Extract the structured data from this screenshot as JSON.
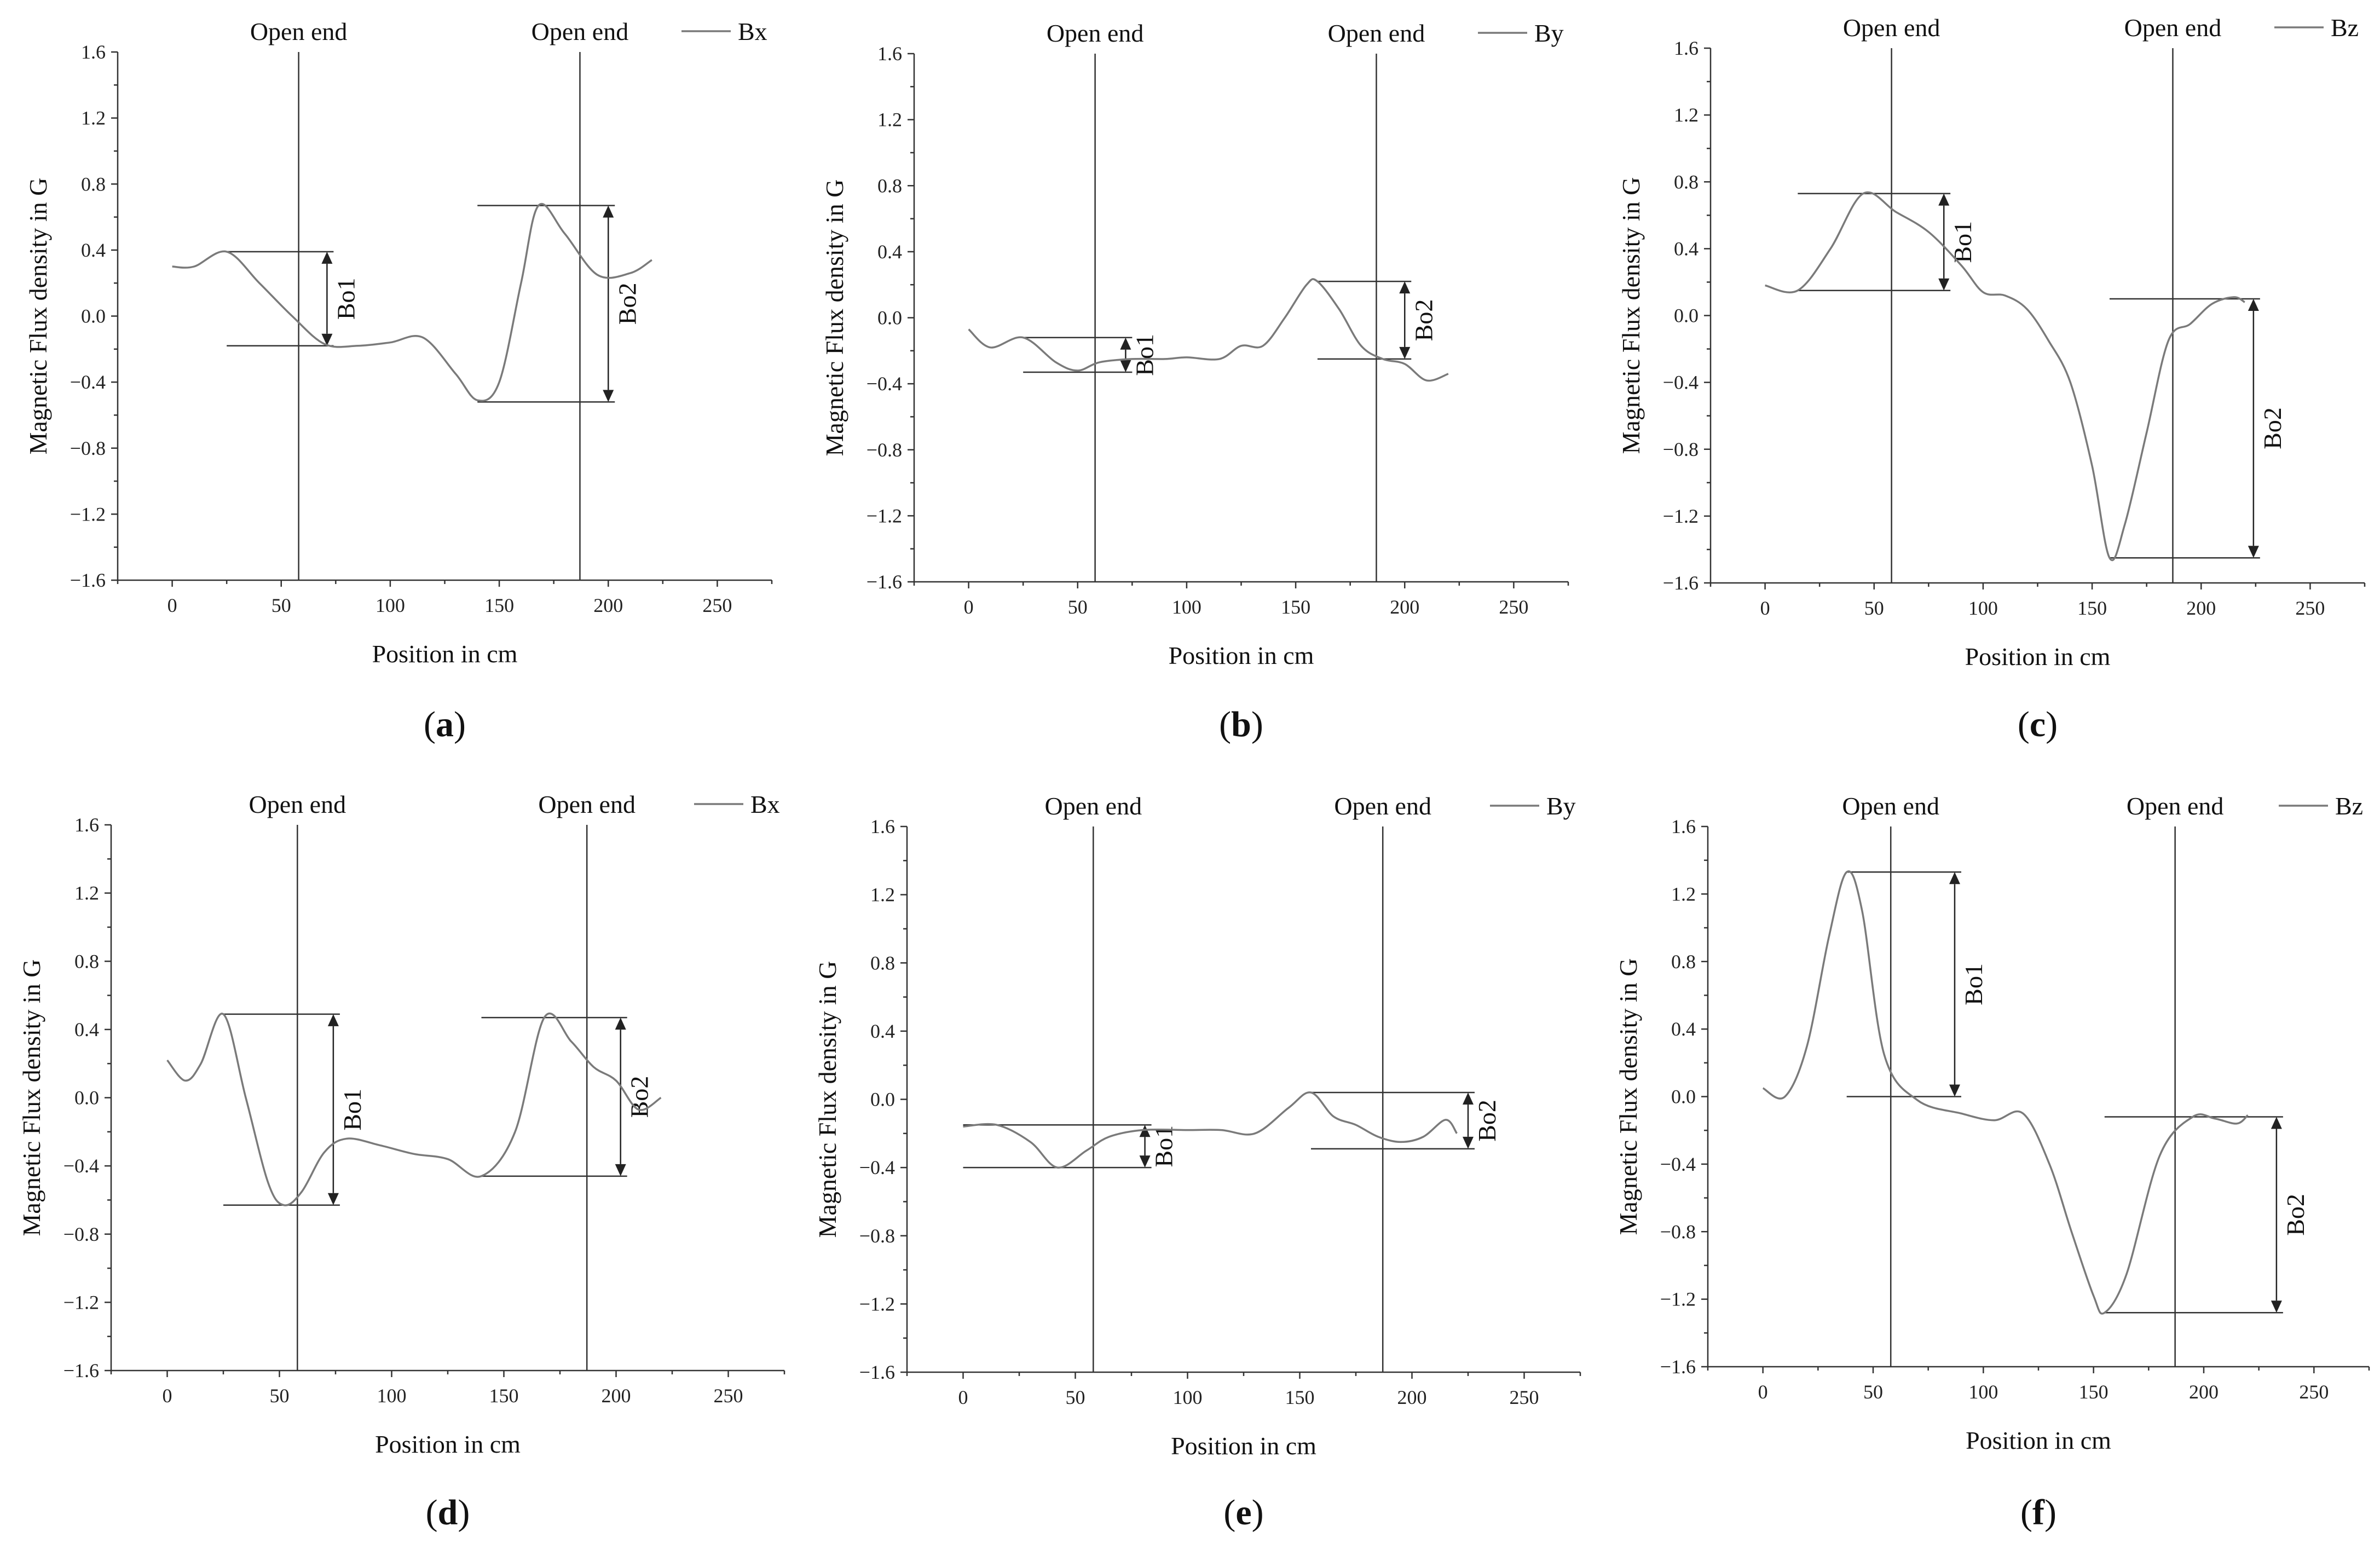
{
  "chart_data": [
    {
      "type": "line",
      "panel_label": "a",
      "series": [
        {
          "name": "Bx",
          "x": [
            0,
            10,
            25,
            40,
            55,
            70,
            85,
            100,
            115,
            130,
            140,
            150,
            160,
            168,
            180,
            195,
            210,
            220
          ],
          "values": [
            0.3,
            0.3,
            0.39,
            0.2,
            0.0,
            -0.17,
            -0.18,
            -0.16,
            -0.13,
            -0.35,
            -0.51,
            -0.4,
            0.2,
            0.67,
            0.5,
            0.25,
            0.26,
            0.34
          ]
        }
      ],
      "xlabel": "Position in cm",
      "ylabel": "Magnetic Flux density in G",
      "xlim": [
        -25,
        275
      ],
      "ylim": [
        -1.6,
        1.6
      ],
      "xticks": [
        "0",
        "50",
        "100",
        "150",
        "200",
        "250"
      ],
      "yticks": [
        "1.6",
        "1.2",
        "0.8",
        "0.4",
        "0.0",
        "−0.4",
        "−0.8",
        "−1.2",
        "−1.6"
      ],
      "open_end_label": "Open end",
      "open_end_positions": [
        58,
        187
      ],
      "brackets": [
        {
          "label": "Bo1",
          "top": 0.39,
          "bottom": -0.18,
          "x_from": 25,
          "x_at": 71
        },
        {
          "label": "Bo2",
          "top": 0.67,
          "bottom": -0.52,
          "x_from": 140,
          "x_at": 200
        }
      ]
    },
    {
      "type": "line",
      "panel_label": "b",
      "series": [
        {
          "name": "By",
          "x": [
            0,
            10,
            25,
            40,
            50,
            60,
            75,
            90,
            100,
            115,
            125,
            135,
            145,
            155,
            160,
            170,
            180,
            190,
            200,
            210,
            220
          ],
          "values": [
            -0.07,
            -0.18,
            -0.12,
            -0.27,
            -0.32,
            -0.27,
            -0.25,
            -0.25,
            -0.24,
            -0.25,
            -0.17,
            -0.17,
            0.0,
            0.2,
            0.22,
            0.05,
            -0.17,
            -0.25,
            -0.28,
            -0.38,
            -0.34
          ]
        }
      ],
      "xlabel": "Position in cm",
      "ylabel": "Magnetic Flux density in G",
      "xlim": [
        -25,
        275
      ],
      "ylim": [
        -1.6,
        1.6
      ],
      "xticks": [
        "0",
        "50",
        "100",
        "150",
        "200",
        "250"
      ],
      "yticks": [
        "1.6",
        "1.2",
        "0.8",
        "0.4",
        "0.0",
        "−0.4",
        "−0.8",
        "−1.2",
        "−1.6"
      ],
      "open_end_label": "Open end",
      "open_end_positions": [
        58,
        187
      ],
      "brackets": [
        {
          "label": "Bo1",
          "top": -0.12,
          "bottom": -0.33,
          "x_from": 25,
          "x_at": 72
        },
        {
          "label": "Bo2",
          "top": 0.22,
          "bottom": -0.25,
          "x_from": 160,
          "x_at": 200
        }
      ]
    },
    {
      "type": "line",
      "panel_label": "c",
      "series": [
        {
          "name": "Bz",
          "x": [
            0,
            15,
            30,
            45,
            60,
            75,
            90,
            100,
            110,
            120,
            130,
            140,
            150,
            158,
            165,
            175,
            185,
            195,
            205,
            215,
            220
          ],
          "values": [
            0.18,
            0.15,
            0.4,
            0.73,
            0.62,
            0.5,
            0.3,
            0.14,
            0.12,
            0.04,
            -0.15,
            -0.4,
            -0.9,
            -1.45,
            -1.25,
            -0.7,
            -0.15,
            -0.05,
            0.07,
            0.11,
            0.08
          ]
        }
      ],
      "xlabel": "Position in cm",
      "ylabel": "Magnetic Flux density in G",
      "xlim": [
        -25,
        275
      ],
      "ylim": [
        -1.6,
        1.6
      ],
      "xticks": [
        "0",
        "50",
        "100",
        "150",
        "200",
        "250"
      ],
      "yticks": [
        "1.6",
        "1.2",
        "0.8",
        "0.4",
        "0.0",
        "−0.4",
        "−0.8",
        "−1.2",
        "−1.6"
      ],
      "open_end_label": "Open end",
      "open_end_positions": [
        58,
        187
      ],
      "brackets": [
        {
          "label": "Bo1",
          "top": 0.73,
          "bottom": 0.15,
          "x_from": 15,
          "x_at": 82
        },
        {
          "label": "Bo2",
          "top": 0.1,
          "bottom": -1.45,
          "x_from": 158,
          "x_at": 224
        }
      ]
    },
    {
      "type": "line",
      "panel_label": "d",
      "series": [
        {
          "name": "Bx",
          "x": [
            0,
            8,
            15,
            25,
            35,
            45,
            52,
            60,
            70,
            80,
            95,
            110,
            125,
            140,
            155,
            168,
            180,
            190,
            200,
            210,
            220
          ],
          "values": [
            0.22,
            0.1,
            0.2,
            0.49,
            0.0,
            -0.5,
            -0.63,
            -0.55,
            -0.32,
            -0.24,
            -0.28,
            -0.33,
            -0.36,
            -0.46,
            -0.2,
            0.47,
            0.33,
            0.18,
            0.1,
            -0.07,
            0.0
          ]
        }
      ],
      "xlabel": "Position in cm",
      "ylabel": "Magnetic Flux density in G",
      "xlim": [
        -25,
        275
      ],
      "ylim": [
        -1.6,
        1.6
      ],
      "xticks": [
        "0",
        "50",
        "100",
        "150",
        "200",
        "250"
      ],
      "yticks": [
        "1.6",
        "1.2",
        "0.8",
        "0.4",
        "0.0",
        "−0.4",
        "−0.8",
        "−1.2",
        "−1.6"
      ],
      "open_end_label": "Open end",
      "open_end_positions": [
        58,
        187
      ],
      "brackets": [
        {
          "label": "Bo1",
          "top": 0.49,
          "bottom": -0.63,
          "x_from": 25,
          "x_at": 74
        },
        {
          "label": "Bo2",
          "top": 0.47,
          "bottom": -0.46,
          "x_from": 140,
          "x_at": 202
        }
      ]
    },
    {
      "type": "line",
      "panel_label": "e",
      "series": [
        {
          "name": "By",
          "x": [
            0,
            15,
            30,
            42,
            55,
            65,
            80,
            100,
            115,
            130,
            145,
            155,
            165,
            175,
            185,
            195,
            205,
            215,
            220
          ],
          "values": [
            -0.16,
            -0.15,
            -0.25,
            -0.4,
            -0.3,
            -0.22,
            -0.18,
            -0.18,
            -0.18,
            -0.2,
            -0.05,
            0.04,
            -0.1,
            -0.15,
            -0.22,
            -0.25,
            -0.22,
            -0.12,
            -0.2
          ]
        }
      ],
      "xlabel": "Position in cm",
      "ylabel": "Magnetic Flux density in G",
      "xlim": [
        -25,
        275
      ],
      "ylim": [
        -1.6,
        1.6
      ],
      "xticks": [
        "0",
        "50",
        "100",
        "150",
        "200",
        "250"
      ],
      "yticks": [
        "1.6",
        "1.2",
        "0.8",
        "0.4",
        "0.0",
        "−0.4",
        "−0.8",
        "−1.2",
        "−1.6"
      ],
      "open_end_label": "Open end",
      "open_end_positions": [
        58,
        187
      ],
      "brackets": [
        {
          "label": "Bo1",
          "top": -0.15,
          "bottom": -0.4,
          "x_from": 0,
          "x_at": 81
        },
        {
          "label": "Bo2",
          "top": 0.04,
          "bottom": -0.29,
          "x_from": 155,
          "x_at": 225
        }
      ]
    },
    {
      "type": "line",
      "panel_label": "f",
      "series": [
        {
          "name": "Bz",
          "x": [
            0,
            10,
            20,
            30,
            38,
            45,
            55,
            70,
            90,
            105,
            118,
            130,
            140,
            150,
            155,
            165,
            180,
            195,
            205,
            215,
            220
          ],
          "values": [
            0.05,
            0.0,
            0.3,
            0.95,
            1.33,
            1.1,
            0.25,
            -0.02,
            -0.1,
            -0.14,
            -0.1,
            -0.4,
            -0.8,
            -1.18,
            -1.28,
            -1.05,
            -0.35,
            -0.12,
            -0.13,
            -0.16,
            -0.11
          ]
        }
      ],
      "xlabel": "Position in cm",
      "ylabel": "Magnetic Flux density in G",
      "xlim": [
        -25,
        275
      ],
      "ylim": [
        -1.6,
        1.6
      ],
      "xticks": [
        "0",
        "50",
        "100",
        "150",
        "200",
        "250"
      ],
      "yticks": [
        "1.6",
        "1.2",
        "0.8",
        "0.4",
        "0.0",
        "−0.4",
        "−0.8",
        "−1.2",
        "−1.6"
      ],
      "open_end_label": "Open end",
      "open_end_positions": [
        58,
        187
      ],
      "brackets": [
        {
          "label": "Bo1",
          "top": 1.33,
          "bottom": 0.0,
          "x_from": 38,
          "x_at": 87
        },
        {
          "label": "Bo2",
          "top": -0.12,
          "bottom": -1.28,
          "x_from": 155,
          "x_at": 233
        }
      ]
    }
  ]
}
